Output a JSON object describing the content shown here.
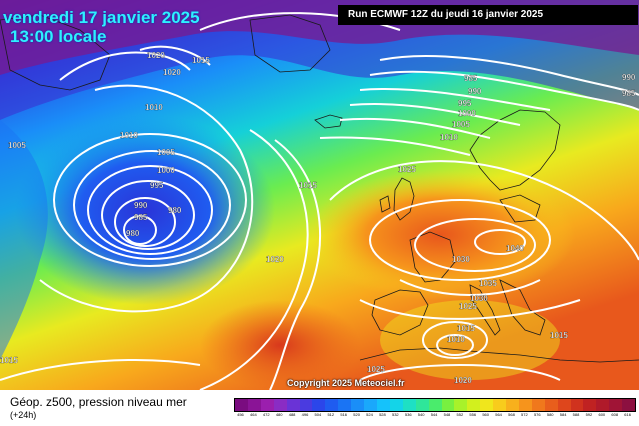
{
  "title": {
    "date": "vendredi 17 janvier 2025",
    "time": "13:00 locale"
  },
  "run_info": "Run ECMWF 12Z du jeudi 16 janvier 2025",
  "copyright": "Copyright 2025 Meteociel.fr",
  "legend": {
    "title": "Géop. z500, pression niveau mer",
    "subtitle": "(+24h)",
    "colors": [
      "#7a0c80",
      "#8a1496",
      "#9b1fae",
      "#8a2cc4",
      "#6a33d6",
      "#4a3be0",
      "#2b46ea",
      "#1f5cf0",
      "#1a74f4",
      "#1a8ef8",
      "#1aa8fb",
      "#15c2fb",
      "#14d4e8",
      "#1ee0c4",
      "#2fe69a",
      "#4aec6c",
      "#78f040",
      "#a8f22a",
      "#d2f01e",
      "#f0e61c",
      "#f8cc1c",
      "#f8b01c",
      "#f6941c",
      "#f0781c",
      "#e85e1c",
      "#de461c",
      "#d0321e",
      "#c02222",
      "#b01a2a",
      "#a01436",
      "#8c1040"
    ],
    "labels": [
      "456",
      "464",
      "472",
      "480",
      "488",
      "496",
      "504",
      "512",
      "516",
      "520",
      "524",
      "528",
      "532",
      "536",
      "540",
      "544",
      "548",
      "552",
      "556",
      "560",
      "564",
      "568",
      "572",
      "576",
      "580",
      "584",
      "588",
      "592",
      "600",
      "608",
      "616"
    ]
  },
  "isobar_labels": [
    {
      "text": "1020"
    },
    {
      "text": "1020"
    },
    {
      "text": "1015"
    },
    {
      "text": "1010"
    },
    {
      "text": "1010"
    },
    {
      "text": "1005"
    },
    {
      "text": "1005"
    },
    {
      "text": "1000"
    },
    {
      "text": "995"
    },
    {
      "text": "990"
    },
    {
      "text": "985"
    },
    {
      "text": "980"
    },
    {
      "text": "980"
    },
    {
      "text": "1015"
    },
    {
      "text": "1020"
    },
    {
      "text": "1025"
    },
    {
      "text": "985"
    },
    {
      "text": "990"
    },
    {
      "text": "995"
    },
    {
      "text": "1000"
    },
    {
      "text": "1005"
    },
    {
      "text": "1010"
    },
    {
      "text": "990"
    },
    {
      "text": "985"
    },
    {
      "text": "1040"
    },
    {
      "text": "1030"
    },
    {
      "text": "1035"
    },
    {
      "text": "1030"
    },
    {
      "text": "1025"
    },
    {
      "text": "1015"
    },
    {
      "text": "1010"
    },
    {
      "text": "1025"
    },
    {
      "text": "1020"
    },
    {
      "text": "1015"
    },
    {
      "text": "1015"
    }
  ]
}
